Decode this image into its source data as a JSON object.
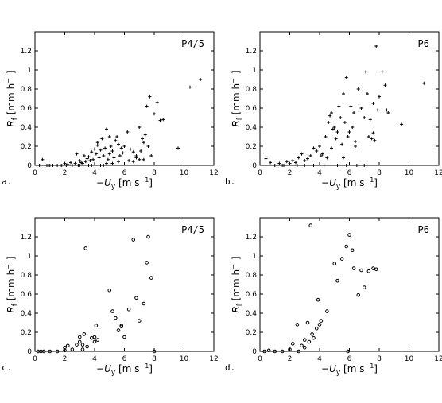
{
  "chart_data": [
    {
      "type": "scatter",
      "panel_label": "a.",
      "title": "P4/5",
      "marker": "plus",
      "xlim": [
        0,
        12
      ],
      "ylim": [
        0,
        1.4
      ],
      "xticks": [
        "0",
        "2",
        "4",
        "6",
        "8",
        "10",
        "12"
      ],
      "yticks": [
        "0",
        "0.2",
        "0.4",
        "0.6",
        "0.8",
        "1",
        "1.2"
      ],
      "x": [
        0.3,
        0.5,
        0.8,
        1.0,
        1.2,
        1.5,
        1.7,
        2.0,
        2.2,
        2.4,
        2.5,
        2.7,
        2.8,
        3.0,
        3.1,
        3.2,
        3.3,
        3.4,
        3.5,
        3.6,
        3.7,
        3.8,
        3.9,
        4.0,
        4.1,
        4.2,
        4.3,
        4.4,
        4.5,
        4.6,
        4.7,
        4.8,
        4.9,
        5.0,
        5.1,
        5.2,
        5.3,
        5.4,
        5.5,
        5.6,
        5.7,
        5.8,
        5.9,
        6.0,
        6.2,
        6.4,
        6.6,
        6.8,
        7.0,
        7.1,
        7.2,
        7.3,
        7.4,
        7.5,
        7.6,
        7.7,
        7.8,
        8.0,
        8.2,
        8.4,
        8.6,
        9.6,
        10.4,
        11.1,
        2.1,
        2.9,
        3.6,
        4.4,
        4.8,
        5.6,
        6.3,
        7.0,
        0.9,
        1.8,
        3.0,
        3.8,
        4.6,
        5.2,
        6.6,
        7.3,
        4.2,
        5.0,
        6.0,
        6.8
      ],
      "y": [
        0.0,
        0.06,
        0.0,
        0.0,
        0.0,
        0.0,
        0.0,
        0.02,
        0.01,
        0.03,
        0.0,
        0.02,
        0.12,
        0.05,
        0.03,
        0.02,
        0.1,
        0.04,
        0.07,
        0.09,
        0.05,
        0.14,
        0.06,
        0.17,
        0.12,
        0.21,
        0.08,
        0.16,
        0.28,
        0.1,
        0.18,
        0.38,
        0.06,
        0.12,
        0.2,
        0.15,
        0.08,
        0.26,
        0.3,
        0.22,
        0.1,
        0.18,
        0.13,
        0.2,
        0.35,
        0.17,
        0.14,
        0.08,
        0.4,
        0.15,
        0.28,
        0.24,
        0.32,
        0.62,
        0.2,
        0.72,
        0.1,
        0.54,
        0.66,
        0.47,
        0.48,
        0.18,
        0.82,
        0.9,
        0.0,
        0.0,
        0.0,
        0.0,
        0.02,
        0.04,
        0.05,
        0.06,
        0.0,
        0.0,
        0.0,
        0.0,
        0.0,
        0.02,
        0.04,
        0.06,
        0.24,
        0.3,
        0.2,
        0.1
      ],
      "xlabel": "−U_y [m s⁻¹]",
      "ylabel": "R_f [mm h⁻¹]"
    },
    {
      "type": "scatter",
      "panel_label": "b.",
      "title": "P6",
      "marker": "plus",
      "xlim": [
        0,
        12
      ],
      "ylim": [
        0,
        1.4
      ],
      "xticks": [
        "0",
        "2",
        "4",
        "6",
        "8",
        "10",
        "12"
      ],
      "yticks": [
        "0",
        "0.2",
        "0.4",
        "0.6",
        "0.8",
        "1",
        "1.2"
      ],
      "x": [
        0.4,
        0.7,
        1.0,
        1.3,
        1.6,
        1.8,
        2.0,
        2.2,
        2.4,
        2.6,
        2.8,
        3.0,
        3.2,
        3.4,
        3.6,
        3.8,
        4.0,
        4.2,
        4.4,
        4.5,
        4.6,
        4.7,
        4.8,
        4.9,
        5.0,
        5.1,
        5.2,
        5.3,
        5.4,
        5.5,
        5.6,
        5.7,
        5.8,
        5.9,
        6.0,
        6.1,
        6.2,
        6.3,
        6.4,
        6.6,
        6.8,
        7.0,
        7.1,
        7.2,
        7.3,
        7.4,
        7.5,
        7.6,
        7.7,
        7.8,
        7.9,
        8.0,
        8.2,
        8.4,
        8.5,
        8.6,
        9.5,
        11.0,
        3.0,
        3.6,
        4.3,
        5.2,
        5.8,
        6.5,
        7.0,
        1.5,
        2.5,
        4.1,
        4.8,
        5.6,
        6.4,
        7.6
      ],
      "y": [
        0.07,
        0.03,
        0.0,
        0.02,
        0.0,
        0.04,
        0.02,
        0.05,
        0.03,
        0.08,
        0.12,
        0.05,
        0.07,
        0.1,
        0.18,
        0.15,
        0.2,
        0.12,
        0.3,
        0.08,
        0.45,
        0.52,
        0.55,
        0.38,
        0.4,
        0.28,
        0.35,
        0.62,
        0.5,
        0.22,
        0.75,
        0.45,
        0.92,
        0.3,
        0.35,
        0.62,
        0.4,
        0.55,
        0.25,
        0.8,
        0.6,
        0.5,
        0.98,
        0.75,
        0.3,
        0.48,
        0.28,
        0.65,
        0.26,
        1.25,
        0.58,
        0.72,
        0.98,
        0.84,
        0.58,
        0.55,
        0.43,
        0.86,
        0.0,
        0.0,
        0.0,
        0.0,
        0.0,
        0.0,
        0.0,
        0.0,
        0.0,
        0.1,
        0.18,
        0.08,
        0.2,
        0.34
      ],
      "xlabel": "−U_y [m s⁻¹]",
      "ylabel": "R_f [mm h⁻¹]"
    },
    {
      "type": "scatter",
      "panel_label": "c.",
      "title": "P4/5",
      "marker": "circle",
      "xlim": [
        0,
        12
      ],
      "ylim": [
        0,
        1.4
      ],
      "xticks": [
        "0",
        "2",
        "4",
        "6",
        "8",
        "10",
        "12"
      ],
      "yticks": [
        "0",
        "0.2",
        "0.4",
        "0.6",
        "0.8",
        "1",
        "1.2"
      ],
      "x": [
        0.2,
        0.4,
        0.6,
        1.0,
        1.5,
        2.0,
        2.2,
        2.5,
        2.8,
        3.0,
        3.0,
        3.2,
        3.3,
        3.4,
        3.5,
        3.8,
        4.0,
        4.1,
        4.0,
        5.0,
        5.2,
        5.4,
        5.6,
        5.8,
        5.8,
        6.0,
        6.3,
        6.6,
        6.8,
        7.0,
        7.3,
        7.5,
        7.6,
        7.8,
        8.0,
        2.0,
        3.2,
        4.2
      ],
      "y": [
        0.0,
        0.0,
        0.0,
        0.0,
        0.0,
        0.01,
        0.06,
        0.02,
        0.07,
        0.1,
        0.15,
        0.07,
        0.18,
        1.08,
        0.05,
        0.14,
        0.15,
        0.27,
        0.1,
        0.64,
        0.42,
        0.35,
        0.22,
        0.26,
        0.27,
        0.15,
        0.44,
        1.17,
        0.56,
        0.32,
        0.5,
        0.93,
        1.2,
        0.77,
        0.0,
        0.04,
        0.02,
        0.12
      ],
      "xlabel": "−U_y [m s⁻¹]",
      "ylabel": "R_f [mm h⁻¹]"
    },
    {
      "type": "scatter",
      "panel_label": "d.",
      "title": "P6",
      "marker": "circle",
      "xlim": [
        0,
        12
      ],
      "ylim": [
        0,
        1.4
      ],
      "xticks": [
        "0",
        "2",
        "4",
        "6",
        "8",
        "10",
        "12"
      ],
      "yticks": [
        "0",
        "0.2",
        "0.4",
        "0.6",
        "0.8",
        "1",
        "1.2"
      ],
      "x": [
        0.3,
        0.6,
        1.0,
        1.5,
        2.0,
        2.2,
        2.5,
        2.8,
        3.0,
        3.0,
        3.2,
        3.4,
        3.5,
        3.6,
        3.8,
        3.9,
        4.0,
        4.1,
        4.5,
        5.0,
        5.2,
        5.5,
        5.8,
        6.0,
        6.2,
        6.3,
        6.6,
        6.8,
        7.0,
        7.3,
        7.6,
        7.8,
        5.9,
        2.6,
        3.3
      ],
      "y": [
        0.0,
        0.01,
        0.0,
        0.0,
        0.02,
        0.08,
        0.28,
        0.06,
        0.12,
        0.04,
        0.3,
        1.32,
        0.18,
        0.14,
        0.24,
        0.54,
        0.28,
        0.32,
        0.42,
        0.92,
        0.74,
        0.97,
        1.1,
        1.22,
        1.06,
        0.87,
        0.59,
        0.85,
        0.67,
        0.84,
        0.87,
        0.86,
        0.0,
        0.0,
        0.1
      ],
      "xlabel": "−U_y [m s⁻¹]",
      "ylabel": "R_f [mm h⁻¹]"
    }
  ]
}
